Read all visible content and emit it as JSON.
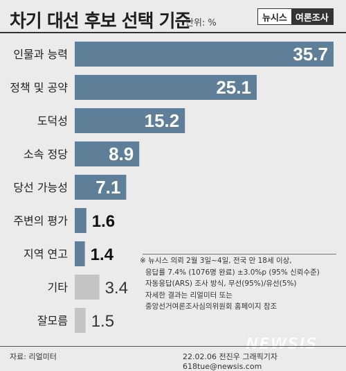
{
  "header": {
    "title": "차기 대선 후보 선택 기준",
    "unit": "단위: %",
    "brand_left": "뉴시스",
    "brand_right": "여론조사"
  },
  "chart_data": {
    "type": "bar",
    "orientation": "horizontal",
    "title": "차기 대선 후보 선택 기준",
    "categories": [
      "인물과 능력",
      "정책 및 공약",
      "도덕성",
      "소속 정당",
      "당선 가능성",
      "주변의 평가",
      "지역 연고",
      "기타",
      "잘모름"
    ],
    "values": [
      35.7,
      25.1,
      15.2,
      8.9,
      7.1,
      1.6,
      1.4,
      3.4,
      1.5
    ],
    "value_labels": [
      "35.7",
      "25.1",
      "15.2",
      "8.9",
      "7.1",
      "1.6",
      "1.4",
      "3.4",
      "1.5"
    ],
    "bar_colors": [
      "#5f7f99",
      "#5f7f99",
      "#5f7f99",
      "#5f7f99",
      "#5f7f99",
      "#5f7f99",
      "#5f7f99",
      "#c4c4c4",
      "#c4c4c4"
    ],
    "xlim": [
      0,
      35.7
    ],
    "grid": false,
    "legend": "none"
  },
  "notes": [
    "※ 뉴시스 의뢰 2월 3일~4일, 전국 만 18세 이상,",
    "응답률 7.4% (1076명 완료) ±3.0%p (95% 신뢰수준)",
    "자동응답(ARS) 조사 방식, 무선(95%)/유선(5%)",
    "자세한 결과는 리얼미터 또는",
    "중앙선거여론조사심의위원회 홈페이지 참조"
  ],
  "footer": {
    "source": "자료: 리얼미터",
    "credit": "22.02.06 전진우 그래픽기자 618tue@newsis.com"
  },
  "watermark": "NEWSIS",
  "colors": {
    "accent_bar": "#5f7f99",
    "gray_bar": "#c4c4c4",
    "background": "#ebebeb"
  }
}
